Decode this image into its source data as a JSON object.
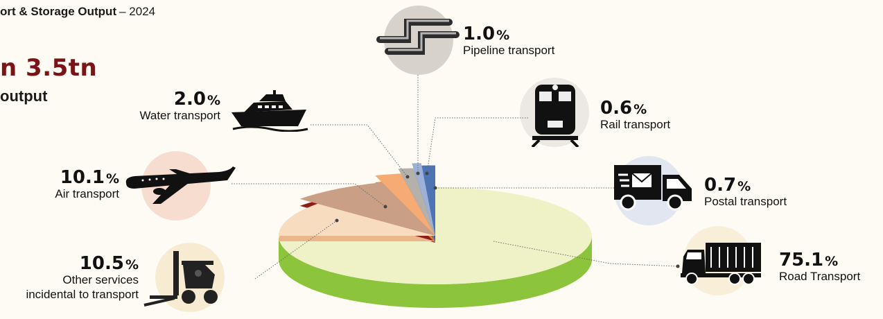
{
  "header": {
    "title_bold": "ort & Storage Output",
    "title_suffix": "– 2024",
    "big_value": "n 3.5tn",
    "sub_value": "output"
  },
  "chart_data": {
    "type": "pie",
    "style": "3d-exploded",
    "categories": [
      "Road Transport",
      "Other services incidental to transport",
      "Air transport",
      "Water transport",
      "Pipeline transport",
      "Rail transport",
      "Postal transport"
    ],
    "values": [
      75.1,
      10.5,
      10.1,
      2.0,
      1.0,
      0.6,
      0.7
    ],
    "value_labels": [
      "75.1",
      "10.5",
      "10.1",
      "2.0",
      "1.0",
      "0.6",
      "0.7"
    ],
    "unit": "%",
    "labels": [
      [
        "Road Transport"
      ],
      [
        "Other services",
        "incidental to transport"
      ],
      [
        "Air transport"
      ],
      [
        "Water transport"
      ],
      [
        "Pipeline transport"
      ],
      [
        "Rail transport"
      ],
      [
        "Postal transport"
      ]
    ],
    "colors": {
      "top": [
        "#eef2c6",
        "#f7dcc0",
        "#c99f86",
        "#f6ab74",
        "#b4b0aa",
        "#9db0d8",
        "#4f74b4"
      ],
      "side": [
        "#8cc43c",
        "#eab68a",
        "#8c1d17",
        "#ec7a2c",
        "#6f6c69",
        "#5c7bbd",
        "#2c4f93"
      ]
    },
    "icons": [
      "truck-icon",
      "forklift-icon",
      "airplane-icon",
      "ship-icon",
      "pipeline-icon",
      "train-icon",
      "delivery-van-icon"
    ]
  }
}
